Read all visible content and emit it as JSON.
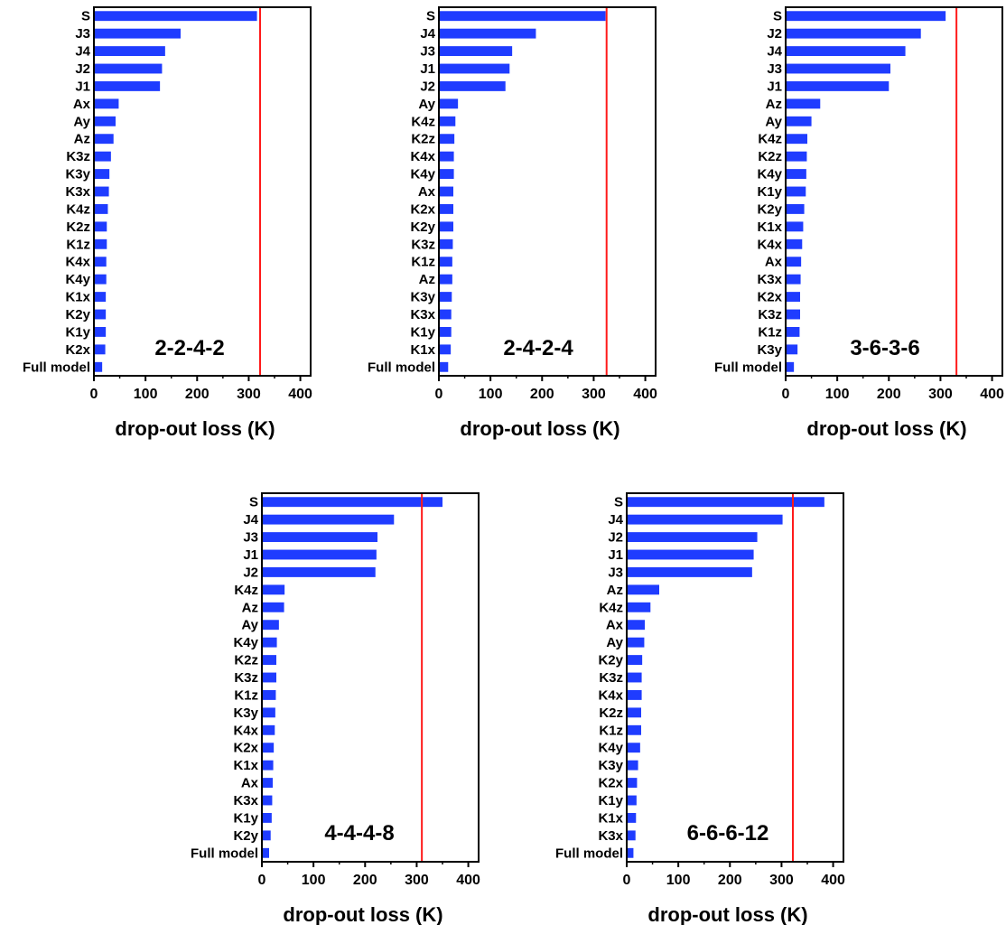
{
  "chart_data": [
    {
      "type": "bar",
      "orientation": "horizontal",
      "annotation": "2-2-4-2",
      "xlabel": "drop-out loss (K)",
      "xlim": [
        0,
        420
      ],
      "xticks": [
        "0",
        "100",
        "200",
        "300",
        "400"
      ],
      "reference_line": 322,
      "bar_color": "#1f3cff",
      "line_color": "#ff1a1a",
      "categories": [
        "S",
        "J3",
        "J4",
        "J2",
        "J1",
        "Ax",
        "Ay",
        "Az",
        "K3z",
        "K3y",
        "K3x",
        "K4z",
        "K2z",
        "K1z",
        "K4x",
        "K4y",
        "K1x",
        "K2y",
        "K1y",
        "K2x",
        "Full model"
      ],
      "values": [
        316,
        168,
        138,
        132,
        128,
        48,
        42,
        38,
        33,
        30,
        29,
        27,
        25,
        25,
        24,
        24,
        23,
        23,
        23,
        22,
        16
      ]
    },
    {
      "type": "bar",
      "orientation": "horizontal",
      "annotation": "2-4-2-4",
      "xlabel": "drop-out loss (K)",
      "xlim": [
        0,
        420
      ],
      "xticks": [
        "0",
        "100",
        "200",
        "300",
        "400"
      ],
      "reference_line": 325,
      "bar_color": "#1f3cff",
      "line_color": "#ff1a1a",
      "categories": [
        "S",
        "J4",
        "J3",
        "J1",
        "J2",
        "Ay",
        "K4z",
        "K2z",
        "K4x",
        "K4y",
        "Ax",
        "K2x",
        "K2y",
        "K3z",
        "K1z",
        "Az",
        "K3y",
        "K3x",
        "K1y",
        "K1x",
        "Full model"
      ],
      "values": [
        323,
        188,
        142,
        137,
        129,
        37,
        32,
        30,
        29,
        29,
        28,
        28,
        28,
        27,
        26,
        26,
        25,
        24,
        24,
        23,
        18
      ]
    },
    {
      "type": "bar",
      "orientation": "horizontal",
      "annotation": "3-6-3-6",
      "xlabel": "drop-out loss (K)",
      "xlim": [
        0,
        420
      ],
      "xticks": [
        "0",
        "100",
        "200",
        "300",
        "400"
      ],
      "reference_line": 331,
      "bar_color": "#1f3cff",
      "line_color": "#ff1a1a",
      "categories": [
        "S",
        "J2",
        "J4",
        "J3",
        "J1",
        "Az",
        "Ay",
        "K4z",
        "K2z",
        "K4y",
        "K1y",
        "K2y",
        "K1x",
        "K4x",
        "Ax",
        "K3x",
        "K2x",
        "K3z",
        "K1z",
        "K3y",
        "Full model"
      ],
      "values": [
        310,
        262,
        232,
        203,
        200,
        67,
        50,
        42,
        41,
        40,
        39,
        36,
        34,
        32,
        30,
        29,
        28,
        28,
        27,
        23,
        16
      ]
    },
    {
      "type": "bar",
      "orientation": "horizontal",
      "annotation": "4-4-4-8",
      "xlabel": "drop-out loss (K)",
      "xlim": [
        0,
        420
      ],
      "xticks": [
        "0",
        "100",
        "200",
        "300",
        "400"
      ],
      "reference_line": 310,
      "bar_color": "#1f3cff",
      "line_color": "#ff1a1a",
      "categories": [
        "S",
        "J4",
        "J3",
        "J1",
        "J2",
        "K4z",
        "Az",
        "Ay",
        "K4y",
        "K2z",
        "K3z",
        "K1z",
        "K3y",
        "K4x",
        "K2x",
        "K1x",
        "Ax",
        "K3x",
        "K1y",
        "K2y",
        "Full model"
      ],
      "values": [
        350,
        256,
        224,
        222,
        220,
        44,
        43,
        33,
        29,
        28,
        28,
        27,
        26,
        25,
        23,
        22,
        21,
        20,
        19,
        17,
        14
      ]
    },
    {
      "type": "bar",
      "orientation": "horizontal",
      "annotation": "6-6-6-12",
      "xlabel": "drop-out loss (K)",
      "xlim": [
        0,
        420
      ],
      "xticks": [
        "0",
        "100",
        "200",
        "300",
        "400"
      ],
      "reference_line": 322,
      "bar_color": "#1f3cff",
      "line_color": "#ff1a1a",
      "categories": [
        "S",
        "J4",
        "J2",
        "J1",
        "J3",
        "Az",
        "K4z",
        "Ax",
        "Ay",
        "K2y",
        "K3z",
        "K4x",
        "K2z",
        "K1z",
        "K4y",
        "K3y",
        "K2x",
        "K1y",
        "K1x",
        "K3x",
        "Full model"
      ],
      "values": [
        383,
        302,
        253,
        246,
        243,
        63,
        46,
        35,
        34,
        30,
        29,
        29,
        28,
        28,
        26,
        22,
        20,
        19,
        18,
        17,
        13
      ]
    }
  ]
}
